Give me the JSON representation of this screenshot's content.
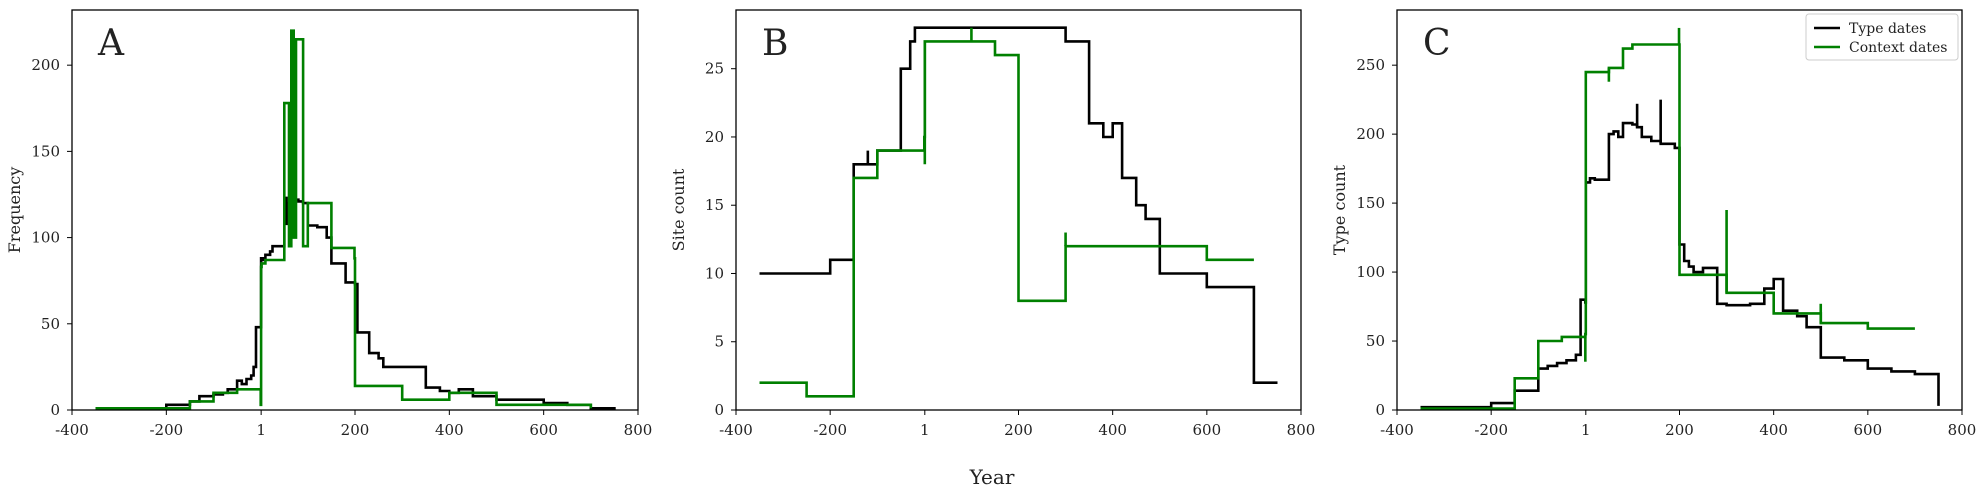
{
  "figure": {
    "xlabel": "Year",
    "legend": {
      "placement": "upper right of panel C",
      "entries": [
        {
          "label": "Type dates",
          "color": "#000000"
        },
        {
          "label": "Context dates",
          "color": "#008000"
        }
      ]
    }
  },
  "chart_data": [
    {
      "type": "line",
      "panel": "A",
      "ylabel": "Frequency",
      "xlim": [
        -400,
        800
      ],
      "ylim": [
        0,
        232
      ],
      "xticks": [
        -400,
        -200,
        1,
        200,
        400,
        600,
        800
      ],
      "xticklabels": [
        "-400",
        "-200",
        "1",
        "200",
        "400",
        "600",
        "800"
      ],
      "yticks": [
        0,
        50,
        100,
        150,
        200
      ],
      "yticklabels": [
        "0",
        "50",
        "100",
        "150",
        "200"
      ],
      "grid": false,
      "series": [
        {
          "name": "Type dates",
          "color": "#000000",
          "x": [
            -350,
            -250,
            -200,
            -150,
            -130,
            -100,
            -80,
            -70,
            -50,
            -40,
            -30,
            -20,
            -15,
            -10,
            0,
            1,
            5,
            10,
            20,
            25,
            40,
            50,
            51,
            55,
            60,
            65,
            70,
            80,
            90,
            100,
            120,
            140,
            150,
            180,
            200,
            205,
            220,
            230,
            250,
            260,
            300,
            350,
            380,
            400,
            420,
            450,
            500,
            600,
            650,
            700,
            750
          ],
          "y": [
            1,
            1,
            3,
            5,
            8,
            9,
            10,
            12,
            17,
            15,
            18,
            20,
            25,
            48,
            48,
            88,
            87,
            90,
            92,
            95,
            95,
            110,
            123,
            108,
            120,
            121,
            122,
            121,
            120,
            107,
            106,
            100,
            85,
            74,
            73,
            45,
            45,
            33,
            30,
            25,
            25,
            13,
            11,
            10,
            12,
            8,
            6,
            4,
            3,
            1,
            0
          ]
        },
        {
          "name": "Context dates",
          "color": "#008000",
          "x": [
            -350,
            -250,
            -200,
            -150,
            -100,
            -50,
            0,
            1,
            2,
            10,
            50,
            60,
            65,
            70,
            75,
            80,
            90,
            100,
            110,
            150,
            199,
            200,
            300,
            400,
            500,
            600,
            700
          ],
          "y": [
            1,
            1,
            1,
            5,
            10,
            12,
            3,
            83,
            85,
            87,
            178,
            95,
            220,
            100,
            215,
            215,
            95,
            120,
            120,
            94,
            88,
            14,
            6,
            10,
            3,
            3,
            1
          ]
        }
      ]
    },
    {
      "type": "line",
      "panel": "B",
      "ylabel": "Site count",
      "xlim": [
        -400,
        800
      ],
      "ylim": [
        0,
        29.3
      ],
      "xticks": [
        -400,
        -200,
        1,
        200,
        400,
        600,
        800
      ],
      "xticklabels": [
        "-400",
        "-200",
        "1",
        "200",
        "400",
        "600",
        "800"
      ],
      "yticks": [
        0,
        5,
        10,
        15,
        20,
        25
      ],
      "yticklabels": [
        "0",
        "5",
        "10",
        "15",
        "20",
        "25"
      ],
      "grid": false,
      "series": [
        {
          "name": "Type dates",
          "color": "#000000",
          "x": [
            -350,
            -230,
            -200,
            -150,
            -120,
            -100,
            -70,
            -50,
            -30,
            -20,
            50,
            250,
            300,
            350,
            380,
            400,
            420,
            450,
            470,
            500,
            600,
            700,
            750
          ],
          "y": [
            10,
            10,
            11,
            18,
            18,
            19,
            19,
            25,
            27,
            28,
            28,
            28,
            27,
            21,
            20,
            21,
            17,
            15,
            14,
            10,
            9,
            2,
            2
          ],
          "spikes": [
            {
              "x": -120,
              "y": 19
            }
          ]
        },
        {
          "name": "Context dates",
          "color": "#008000",
          "x": [
            -350,
            -250,
            -200,
            -150,
            -100,
            -50,
            0,
            1,
            50,
            100,
            150,
            200,
            250,
            300,
            350,
            400,
            500,
            600,
            700
          ],
          "y": [
            2,
            1,
            1,
            17,
            19,
            19,
            20,
            27,
            27,
            27,
            26,
            8,
            8,
            12,
            12,
            12,
            12,
            11,
            11
          ],
          "spikes": [
            {
              "x": 1,
              "y": 18
            },
            {
              "x": 100,
              "y": 28
            },
            {
              "x": 300,
              "y": 13
            }
          ]
        }
      ]
    },
    {
      "type": "line",
      "panel": "C",
      "ylabel": "Type count",
      "xlim": [
        -400,
        800
      ],
      "ylim": [
        0,
        290
      ],
      "xticks": [
        -400,
        -200,
        1,
        200,
        400,
        600,
        800
      ],
      "xticklabels": [
        "-400",
        "-200",
        "1",
        "200",
        "400",
        "600",
        "800"
      ],
      "yticks": [
        0,
        50,
        100,
        150,
        200,
        250
      ],
      "yticklabels": [
        "0",
        "50",
        "100",
        "150",
        "200",
        "250"
      ],
      "grid": false,
      "series": [
        {
          "name": "Type dates",
          "color": "#000000",
          "x": [
            -350,
            -250,
            -200,
            -150,
            -100,
            -80,
            -60,
            -40,
            -20,
            -10,
            0,
            1,
            10,
            20,
            50,
            60,
            70,
            80,
            100,
            110,
            120,
            140,
            160,
            190,
            200,
            210,
            220,
            230,
            250,
            280,
            300,
            350,
            380,
            400,
            420,
            450,
            470,
            500,
            550,
            600,
            650,
            700,
            750
          ],
          "y": [
            2,
            2,
            5,
            14,
            30,
            32,
            34,
            36,
            40,
            80,
            78,
            165,
            168,
            167,
            200,
            202,
            198,
            208,
            207,
            205,
            198,
            195,
            193,
            190,
            120,
            108,
            104,
            100,
            103,
            77,
            76,
            77,
            88,
            95,
            72,
            68,
            60,
            38,
            36,
            30,
            28,
            26,
            3
          ],
          "spikes": [
            {
              "x": 110,
              "y": 222
            },
            {
              "x": 160,
              "y": 225
            }
          ]
        },
        {
          "name": "Context dates",
          "color": "#008000",
          "x": [
            -350,
            -200,
            -150,
            -100,
            -50,
            0,
            1,
            50,
            80,
            100,
            200,
            300,
            400,
            500,
            600,
            700
          ],
          "y": [
            1,
            1,
            23,
            50,
            53,
            55,
            245,
            248,
            262,
            265,
            98,
            85,
            70,
            63,
            59,
            59
          ],
          "spikes": [
            {
              "x": 0,
              "y": 35
            },
            {
              "x": 50,
              "y": 238
            },
            {
              "x": 199,
              "y": 277
            },
            {
              "x": 300,
              "y": 145
            },
            {
              "x": 500,
              "y": 77
            }
          ]
        }
      ]
    }
  ]
}
